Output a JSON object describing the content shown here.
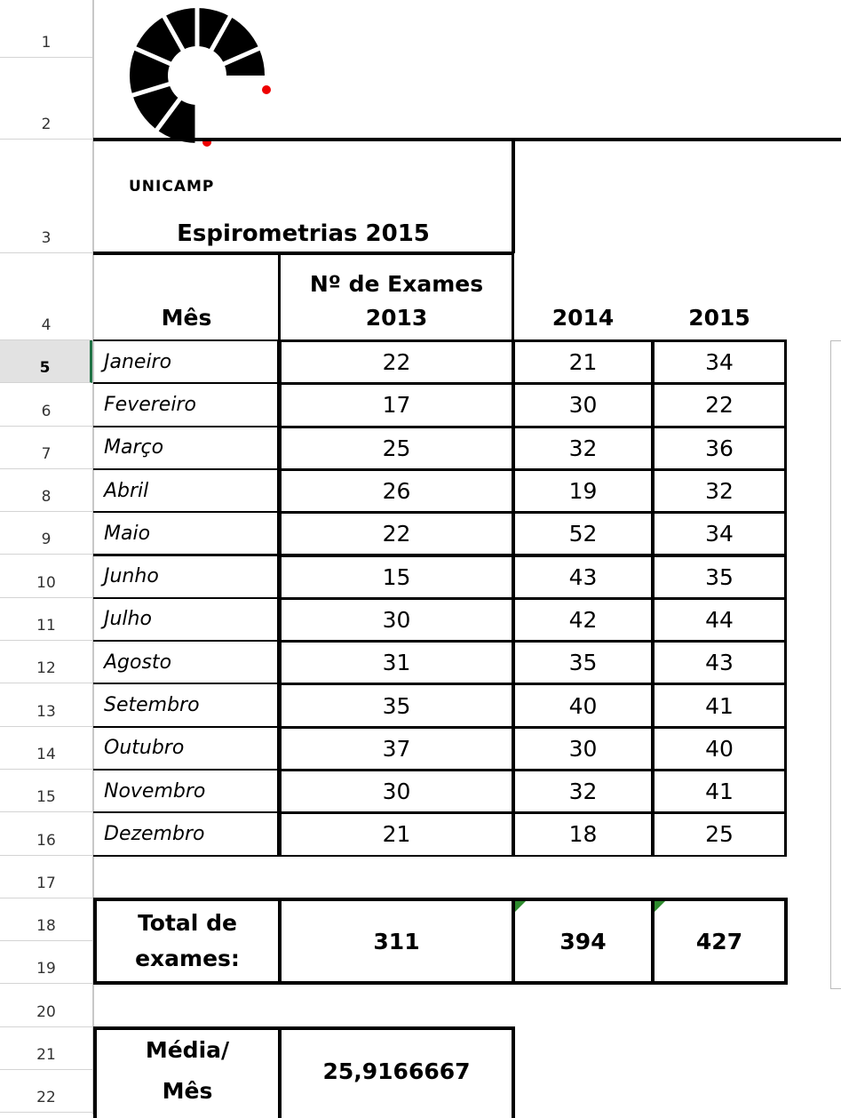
{
  "row_numbers": [
    1,
    2,
    3,
    4,
    5,
    6,
    7,
    8,
    9,
    10,
    11,
    12,
    13,
    14,
    15,
    16,
    17,
    18,
    19,
    20,
    21,
    22
  ],
  "logo_text": "UNICAMP",
  "title": "Espirometrias 2015",
  "table": {
    "header": [
      "Mês",
      "Nº de Exames 2013",
      "2014",
      "2015"
    ],
    "rows": [
      [
        "Janeiro",
        "22",
        "21",
        "34"
      ],
      [
        "Fevereiro",
        "17",
        "30",
        "22"
      ],
      [
        "Março",
        "25",
        "32",
        "36"
      ],
      [
        "Abril",
        "26",
        "19",
        "32"
      ],
      [
        "Maio",
        "22",
        "52",
        "34"
      ],
      [
        "Junho",
        "15",
        "43",
        "35"
      ],
      [
        "Julho",
        "30",
        "42",
        "44"
      ],
      [
        "Agosto",
        "31",
        "35",
        "43"
      ],
      [
        "Setembro",
        "35",
        "40",
        "41"
      ],
      [
        "Outubro",
        "37",
        "30",
        "40"
      ],
      [
        "Novembro",
        "30",
        "32",
        "41"
      ],
      [
        "Dezembro",
        "21",
        "18",
        "25"
      ]
    ]
  },
  "totals": {
    "label": "Total de exames:",
    "values": [
      "311",
      "394",
      "427"
    ]
  },
  "average": {
    "label": "Média/ Mês",
    "value": "25,9166667"
  }
}
